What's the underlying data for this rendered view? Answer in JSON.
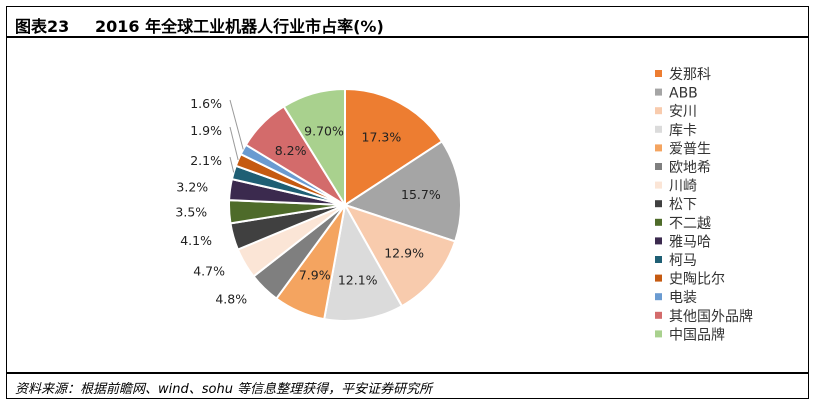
{
  "header": {
    "figure_label": "图表23",
    "title": "2016 年全球工业机器人行业市占率(%)"
  },
  "footer": {
    "source": "资料来源：根据前瞻网、wind、sohu 等信息整理获得，平安证券研究所"
  },
  "chart_data": {
    "type": "pie",
    "title": "2016 年全球工业机器人行业市占率(%)",
    "legend_position": "right",
    "slices": [
      {
        "name": "发那科",
        "value": 17.3,
        "label": "17.3%",
        "color": "#ED7D31"
      },
      {
        "name": "ABB",
        "value": 15.7,
        "label": "15.7%",
        "color": "#A5A5A5"
      },
      {
        "name": "安川",
        "value": 12.9,
        "label": "12.9%",
        "color": "#F8CBAD"
      },
      {
        "name": "库卡",
        "value": 12.1,
        "label": "12.1%",
        "color": "#DBDBDB"
      },
      {
        "name": "爱普生",
        "value": 7.9,
        "label": "7.9%",
        "color": "#F4A460"
      },
      {
        "name": "欧地希",
        "value": 4.8,
        "label": "4.8%",
        "color": "#7F7F7F"
      },
      {
        "name": "川崎",
        "value": 4.7,
        "label": "4.7%",
        "color": "#FBE5D6"
      },
      {
        "name": "松下",
        "value": 4.1,
        "label": "4.1%",
        "color": "#404040"
      },
      {
        "name": "不二越",
        "value": 3.5,
        "label": "3.5%",
        "color": "#4E6B2A"
      },
      {
        "name": "雅马哈",
        "value": 3.2,
        "label": "3.2%",
        "color": "#3B2A4E"
      },
      {
        "name": "柯马",
        "value": 2.1,
        "label": "2.1%",
        "color": "#1F5F74"
      },
      {
        "name": "史陶比尔",
        "value": 1.9,
        "label": "1.9%",
        "color": "#C55A11"
      },
      {
        "name": "电装",
        "value": 1.6,
        "label": "1.6%",
        "color": "#6A9BD1"
      },
      {
        "name": "其他国外品牌",
        "value": 8.2,
        "label": "8.2%",
        "color": "#D36B6B"
      },
      {
        "name": "中国品牌",
        "value": 9.7,
        "label": "9.70%",
        "color": "#A9D18E"
      }
    ]
  }
}
